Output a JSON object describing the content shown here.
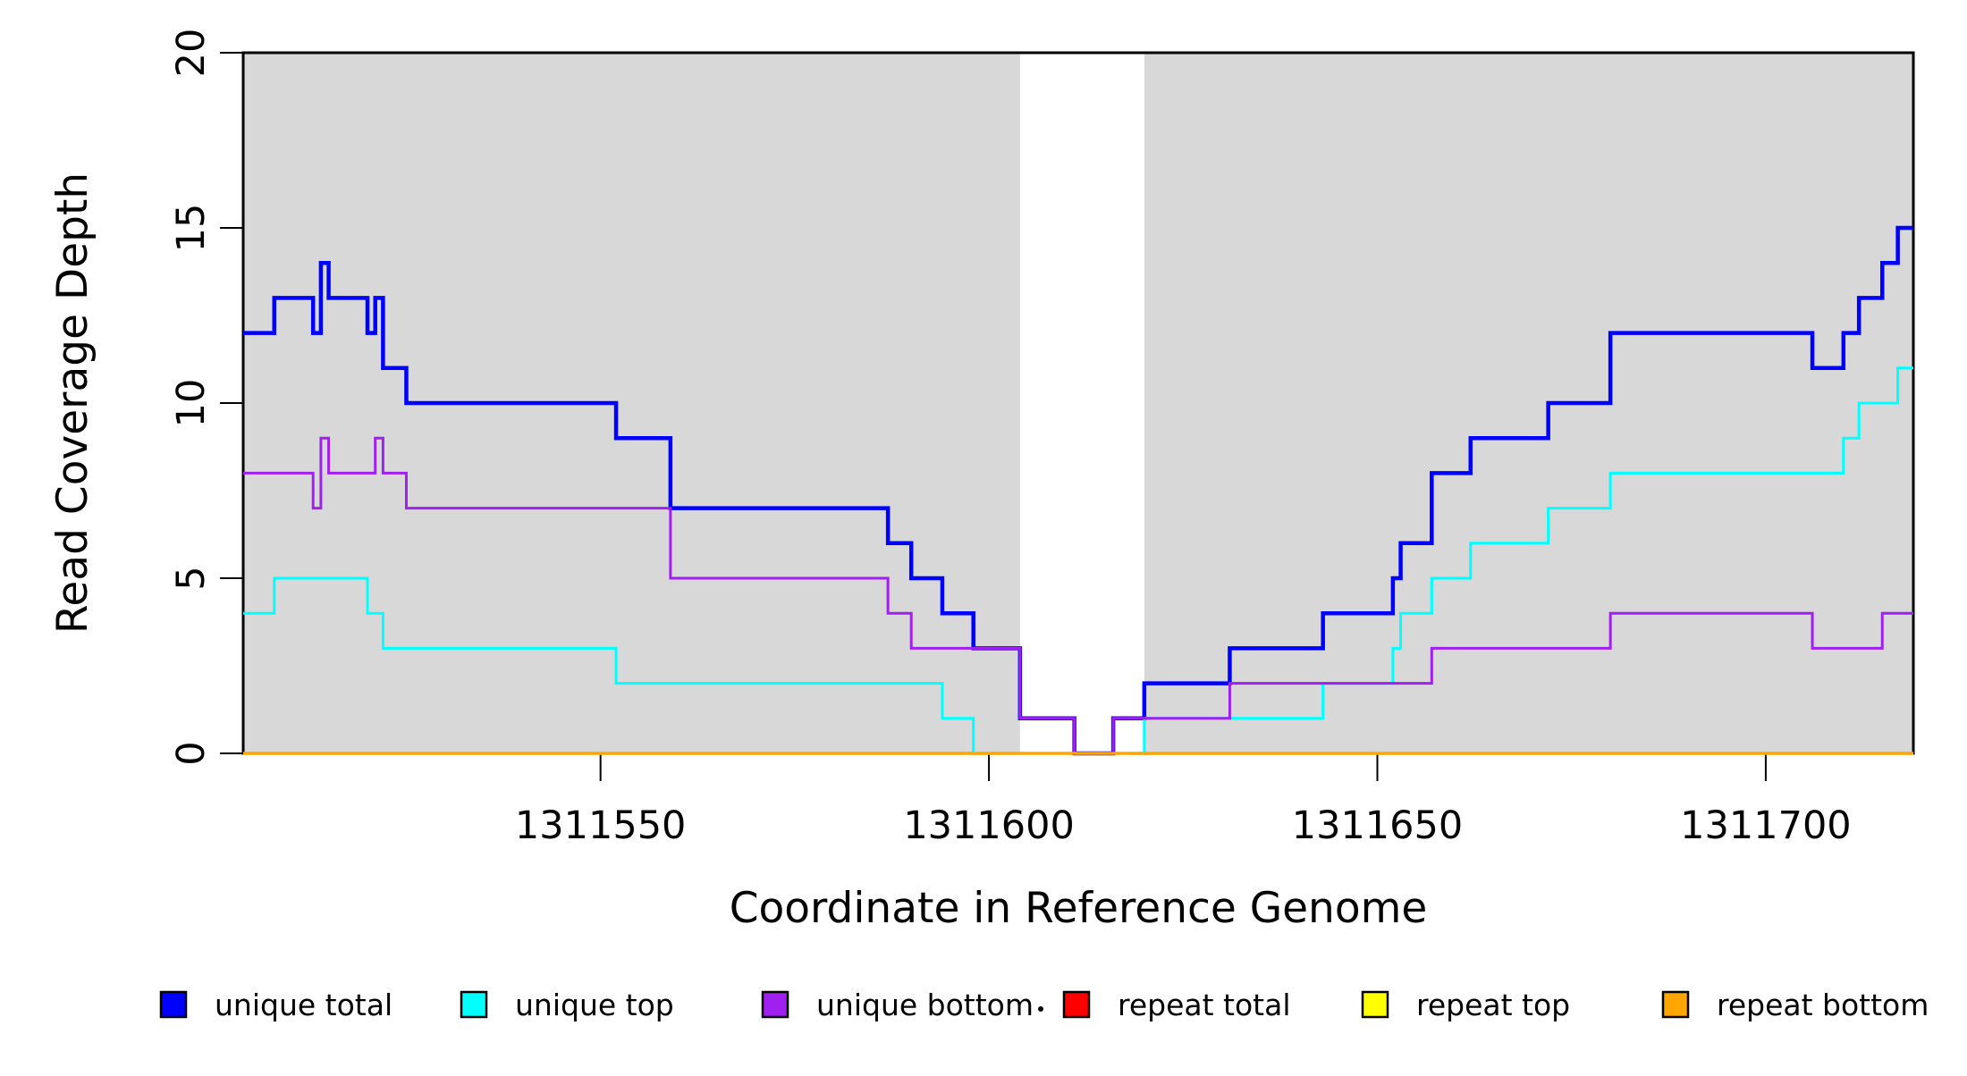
{
  "chart_data": {
    "type": "line",
    "subtype": "step",
    "title": "",
    "xlabel": "Coordinate in Reference Genome",
    "ylabel": "Read Coverage Depth",
    "xlim": [
      1311504,
      1311719
    ],
    "ylim": [
      0,
      20
    ],
    "x_ticks": [
      1311550,
      1311600,
      1311650,
      1311700
    ],
    "x_tick_labels": [
      "1311550",
      "1311600",
      "1311650",
      "1311700"
    ],
    "y_ticks": [
      0,
      5,
      10,
      15,
      20
    ],
    "y_tick_labels": [
      "0",
      "5",
      "10",
      "15",
      "20"
    ],
    "grid": false,
    "legend_position": "bottom",
    "background_shading": {
      "color": "#D8D8D8",
      "regions": [
        [
          1311504,
          1311604
        ],
        [
          1311620,
          1311719
        ]
      ],
      "gap_region": [
        1311604,
        1311620
      ]
    },
    "series": [
      {
        "name": "unique total",
        "color": "#0000FF",
        "line_width": 4.5,
        "steps": [
          [
            1311504,
            12
          ],
          [
            1311508,
            13
          ],
          [
            1311513,
            12
          ],
          [
            1311514,
            14
          ],
          [
            1311515,
            13
          ],
          [
            1311520,
            12
          ],
          [
            1311521,
            13
          ],
          [
            1311522,
            11
          ],
          [
            1311525,
            10
          ],
          [
            1311552,
            9
          ],
          [
            1311559,
            7
          ],
          [
            1311587,
            6
          ],
          [
            1311590,
            5
          ],
          [
            1311594,
            4
          ],
          [
            1311598,
            3
          ],
          [
            1311604,
            1
          ],
          [
            1311611,
            0
          ],
          [
            1311616,
            1
          ],
          [
            1311620,
            2
          ],
          [
            1311631,
            3
          ],
          [
            1311643,
            4
          ],
          [
            1311652,
            5
          ],
          [
            1311653,
            6
          ],
          [
            1311657,
            8
          ],
          [
            1311662,
            9
          ],
          [
            1311672,
            10
          ],
          [
            1311680,
            12
          ],
          [
            1311706,
            11
          ],
          [
            1311710,
            12
          ],
          [
            1311712,
            13
          ],
          [
            1311715,
            14
          ],
          [
            1311717,
            15
          ]
        ]
      },
      {
        "name": "unique top",
        "color": "#00FFFF",
        "line_width": 3,
        "steps": [
          [
            1311504,
            4
          ],
          [
            1311508,
            5
          ],
          [
            1311520,
            4
          ],
          [
            1311522,
            3
          ],
          [
            1311552,
            2
          ],
          [
            1311594,
            1
          ],
          [
            1311598,
            0
          ],
          [
            1311620,
            1
          ],
          [
            1311643,
            2
          ],
          [
            1311652,
            3
          ],
          [
            1311653,
            4
          ],
          [
            1311657,
            5
          ],
          [
            1311662,
            6
          ],
          [
            1311672,
            7
          ],
          [
            1311680,
            8
          ],
          [
            1311710,
            9
          ],
          [
            1311712,
            10
          ],
          [
            1311717,
            11
          ]
        ]
      },
      {
        "name": "unique bottom",
        "color": "#A020F0",
        "line_width": 3,
        "steps": [
          [
            1311504,
            8
          ],
          [
            1311513,
            7
          ],
          [
            1311514,
            9
          ],
          [
            1311515,
            8
          ],
          [
            1311521,
            9
          ],
          [
            1311522,
            8
          ],
          [
            1311525,
            7
          ],
          [
            1311559,
            5
          ],
          [
            1311587,
            4
          ],
          [
            1311590,
            3
          ],
          [
            1311604,
            1
          ],
          [
            1311611,
            0
          ],
          [
            1311616,
            1
          ],
          [
            1311631,
            2
          ],
          [
            1311657,
            3
          ],
          [
            1311680,
            4
          ],
          [
            1311706,
            3
          ],
          [
            1311715,
            4
          ]
        ]
      },
      {
        "name": "repeat total",
        "color": "#FF0000",
        "line_width": 3,
        "steps": [
          [
            1311504,
            0
          ]
        ]
      },
      {
        "name": "repeat top",
        "color": "#FFFF00",
        "line_width": 3,
        "steps": [
          [
            1311504,
            0
          ]
        ]
      },
      {
        "name": "repeat bottom",
        "color": "#FFA500",
        "line_width": 3.5,
        "steps": [
          [
            1311504,
            0
          ]
        ]
      }
    ]
  }
}
